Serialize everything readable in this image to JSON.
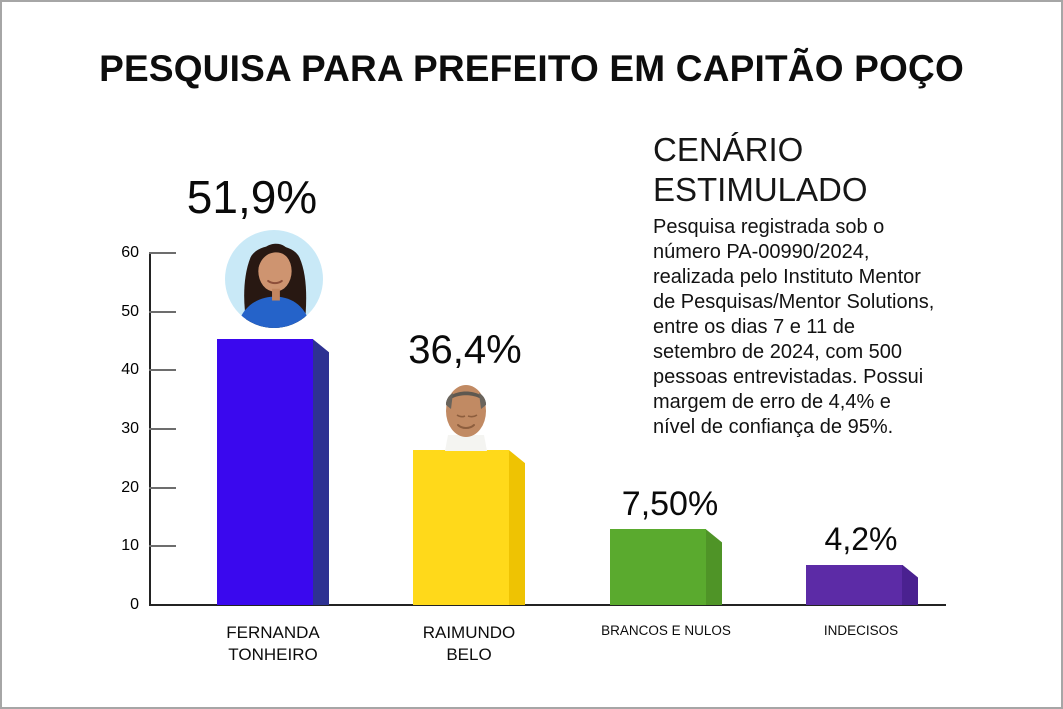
{
  "page": {
    "title": "PESQUISA PARA PREFEITO EM CAPITÃO POÇO"
  },
  "scenario": {
    "heading_lines": [
      "CENÁRIO",
      "ESTIMULADO"
    ],
    "body_lines": [
      "Pesquisa registrada sob o",
      "número PA-00990/2024,",
      "realizada pelo Instituto Mentor",
      "de Pesquisas/Mentor Solutions,",
      "entre os dias 7 e 11 de",
      "setembro de 2024, com 500",
      "pessoas entrevistadas. Possui",
      "margem de erro de 4,4% e",
      "nível de confiança de 95%."
    ]
  },
  "chart_data": {
    "type": "bar",
    "title": "PESQUISA PARA PREFEITO EM CAPITÃO POÇO",
    "categories": [
      "FERNANDA TONHEIRO",
      "RAIMUNDO BELO",
      "BRANCOS E NULOS",
      "INDECISOS"
    ],
    "category_label_lines": [
      [
        "FERNANDA",
        "TONHEIRO"
      ],
      [
        "RAIMUNDO",
        "BELO"
      ],
      [
        "BRANCOS E NULOS"
      ],
      [
        "INDECISOS"
      ]
    ],
    "values": [
      51.9,
      36.4,
      7.5,
      4.2
    ],
    "value_labels": [
      "51,9%",
      "36,4%",
      "7,50%",
      "4,2%"
    ],
    "drawn_bar_heights_axis_units": [
      45.3,
      26.4,
      12.9,
      6.9
    ],
    "y_ticks": [
      0,
      10,
      20,
      30,
      40,
      50,
      60
    ],
    "ylim": [
      0,
      60
    ],
    "grid": false,
    "legend": false,
    "style": "3d-extruded-bars",
    "bar_front_colors": [
      "#3A08EE",
      "#FFD91A",
      "#5AAA2E",
      "#5C2BA6"
    ],
    "bar_side_colors": [
      "#2E3192",
      "#EEC303",
      "#4F9427",
      "#4A2190"
    ],
    "photo_bg_color": "#C9E9F7",
    "candidates_with_photo": [
      "FERNANDA TONHEIRO",
      "RAIMUNDO BELO"
    ]
  }
}
